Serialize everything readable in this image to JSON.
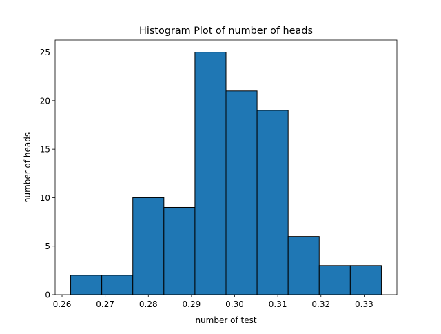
{
  "chart_data": {
    "type": "bar",
    "subtype": "histogram",
    "title": "Histogram Plot of number of heads",
    "xlabel": "number of test",
    "ylabel": "number of heads",
    "bin_edges": [
      0.262,
      0.2692,
      0.2764,
      0.2836,
      0.2908,
      0.298,
      0.3052,
      0.3124,
      0.3196,
      0.3268,
      0.334
    ],
    "values": [
      2,
      2,
      10,
      9,
      25,
      21,
      19,
      6,
      3,
      3
    ],
    "xlim": [
      0.2584,
      0.3376
    ],
    "ylim": [
      0,
      26.25
    ],
    "xticks": [
      0.26,
      0.27,
      0.28,
      0.29,
      0.3,
      0.31,
      0.32,
      0.33
    ],
    "xtick_labels": [
      "0.26",
      "0.27",
      "0.28",
      "0.29",
      "0.30",
      "0.31",
      "0.32",
      "0.33"
    ],
    "yticks": [
      0,
      5,
      10,
      15,
      20,
      25
    ],
    "ytick_labels": [
      "0",
      "5",
      "10",
      "15",
      "20",
      "25"
    ],
    "bar_color": "#1f77b4",
    "edge_color": "#000000",
    "grid": false,
    "legend": "none"
  }
}
